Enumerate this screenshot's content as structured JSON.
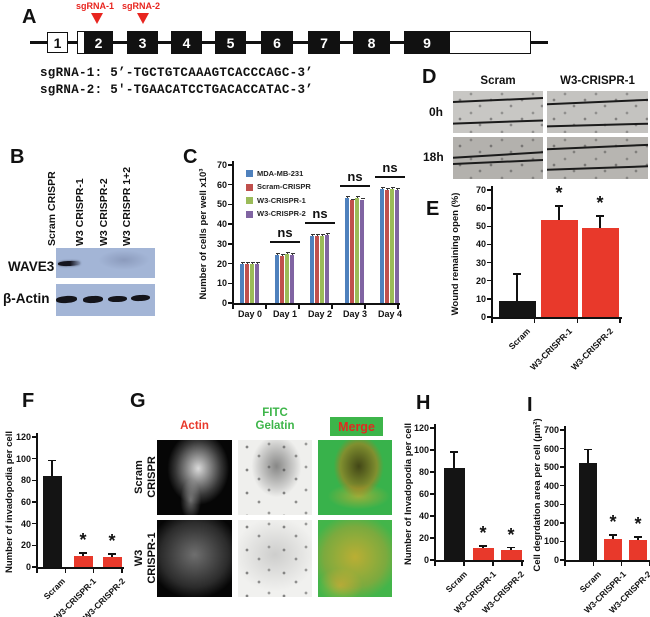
{
  "panel_labels": {
    "A": "A",
    "B": "B",
    "C": "C",
    "D": "D",
    "E": "E",
    "F": "F",
    "G": "G",
    "H": "H",
    "I": "I"
  },
  "panelA": {
    "marker_color": "#e8251f",
    "sgrna_markers": [
      {
        "label": "sgRNA-1"
      },
      {
        "label": "sgRNA-2"
      }
    ],
    "exons": [
      "1",
      "2",
      "3",
      "4",
      "5",
      "6",
      "7",
      "8",
      "9"
    ],
    "sequences": [
      "sgRNA-1: 5’-TGCTGTCAAAGTCACCCAGC-3’",
      "sgRNA-2: 5'-TGAACATCCTGACACCATAC-3’"
    ]
  },
  "panelB": {
    "lane_labels": [
      "Scram CRISPR",
      "W3 CRISPR-1",
      "W3 CRISPR-2",
      "W3 CRISPR 1+2"
    ],
    "row_labels": [
      "WAVE3",
      "β-Actin"
    ],
    "blot_color": "#a3b5d6"
  },
  "panelD": {
    "col_headers": [
      "Scram",
      "W3-CRISPR-1"
    ],
    "row_headers": [
      "0h",
      "18h"
    ]
  },
  "panelG": {
    "col_headers": {
      "actin": "Actin",
      "fitc_line1": "FITC",
      "fitc_line2": "Gelatin",
      "merge": "Merge"
    },
    "header_colors": {
      "actin": "#e8392b",
      "fitc": "#3db549",
      "merge_bg": "#3db54a",
      "merge_text": "#e02b20"
    },
    "row_labels": [
      {
        "line1": "Scram",
        "line2": "CRISPR"
      },
      {
        "line1": "W3",
        "line2": "CRISPR-1"
      }
    ]
  },
  "chart_data": [
    {
      "id": "C",
      "type": "bar",
      "grouped": true,
      "categories": [
        "Day 0",
        "Day 1",
        "Day 2",
        "Day 3",
        "Day 4"
      ],
      "series": [
        {
          "name": "MDA-MB-231",
          "color": "#4f81bd",
          "values": [
            20,
            24.5,
            34,
            53.5,
            58
          ],
          "error": 0.8
        },
        {
          "name": "Scram-CRISPR",
          "color": "#c0504d",
          "values": [
            20,
            24,
            34,
            52,
            57.5
          ],
          "error": 0.8
        },
        {
          "name": "W3-CRISPR-1",
          "color": "#9bbb59",
          "values": [
            20,
            25,
            34,
            53.5,
            58
          ],
          "error": 0.8
        },
        {
          "name": "W3-CRISPR-2",
          "color": "#8064a2",
          "values": [
            20,
            24.5,
            34.5,
            52.5,
            57.5
          ],
          "error": 0.8
        }
      ],
      "ylabel": "Number of cells per well x10³",
      "ylim": [
        0,
        70
      ],
      "ytick": 10,
      "legend_position": "top-left",
      "annotations": [
        {
          "category": "Day 1",
          "text": "ns"
        },
        {
          "category": "Day 2",
          "text": "ns"
        },
        {
          "category": "Day 3",
          "text": "ns"
        },
        {
          "category": "Day 4",
          "text": "ns"
        }
      ]
    },
    {
      "id": "E",
      "type": "bar",
      "categories": [
        "Scram",
        "W3-CRISPR-1",
        "W3-CRISPR-2"
      ],
      "values": [
        9,
        53.5,
        49
      ],
      "errors": [
        15,
        8,
        7
      ],
      "sig": [
        "",
        "*",
        "*"
      ],
      "colors": [
        "#141414",
        "#e8392b",
        "#e8392b"
      ],
      "ylabel": "Wound remaining open (%)",
      "ylim": [
        0,
        70
      ],
      "ytick": 10
    },
    {
      "id": "F",
      "type": "bar",
      "categories": [
        "Scram",
        "W3-CRISPR-1",
        "W3-CRISPR-2"
      ],
      "values": [
        84,
        10.5,
        9
      ],
      "errors": [
        15,
        3,
        3.5
      ],
      "sig": [
        "",
        "*",
        "*"
      ],
      "colors": [
        "#141414",
        "#e8392b",
        "#e8392b"
      ],
      "ylabel": "Number of invadopodia per cell",
      "ylim": [
        0,
        120
      ],
      "ytick": 20
    },
    {
      "id": "H",
      "type": "bar",
      "categories": [
        "Scram",
        "W3-CRISPR-1",
        "W3-CRISPR-2"
      ],
      "values": [
        84,
        10.5,
        9
      ],
      "errors": [
        15,
        3,
        3
      ],
      "sig": [
        "",
        "*",
        "*"
      ],
      "colors": [
        "#141414",
        "#e8392b",
        "#e8392b"
      ],
      "ylabel": "Number of Invadopodia per cell",
      "ylim": [
        0,
        120
      ],
      "ytick": 20
    },
    {
      "id": "I",
      "type": "bar",
      "categories": [
        "Scram",
        "W3-CRISPR-1",
        "W3-CRISPR-2"
      ],
      "values": [
        520,
        112,
        108
      ],
      "errors": [
        80,
        28,
        20
      ],
      "sig": [
        "",
        "*",
        "*"
      ],
      "colors": [
        "#141414",
        "#e8392b",
        "#e8392b"
      ],
      "ylabel": "Cell degrdation area per cell (µm²)",
      "ylim": [
        0,
        700
      ],
      "ytick": 100
    }
  ]
}
